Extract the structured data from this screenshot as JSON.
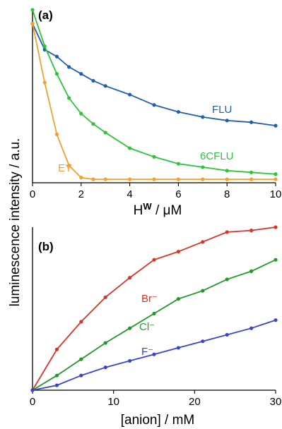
{
  "ylabel": "luminescence intensity / a.u.",
  "colors": {
    "FLU": "#1f5fae",
    "6CFLU": "#2dc43c",
    "EY": "#f2a030",
    "Br": "#d8342a",
    "Cl": "#1f9a2a",
    "F": "#3a44c9"
  },
  "chart_data": [
    {
      "type": "scatter",
      "panel_label": "(a)",
      "xlabel_base": "H",
      "xlabel_sup": "W",
      "xlabel_unit": " / μM",
      "xlim": [
        0,
        10
      ],
      "ylim": [
        0,
        1
      ],
      "xticks": [
        "0",
        "2",
        "4",
        "6",
        "8",
        "10"
      ],
      "series": [
        {
          "name": "FLU",
          "x": [
            0,
            0.5,
            1,
            1.5,
            2,
            2.5,
            3,
            4,
            5,
            6,
            7,
            8,
            9,
            10
          ],
          "y": [
            0.92,
            0.77,
            0.73,
            0.67,
            0.63,
            0.59,
            0.56,
            0.51,
            0.45,
            0.41,
            0.38,
            0.36,
            0.35,
            0.33
          ]
        },
        {
          "name": "6CFLU",
          "x": [
            0,
            0.5,
            1,
            1.5,
            2,
            2.5,
            3,
            4,
            5,
            6,
            7,
            8,
            9,
            10
          ],
          "y": [
            1.0,
            0.79,
            0.63,
            0.49,
            0.4,
            0.34,
            0.29,
            0.2,
            0.15,
            0.11,
            0.09,
            0.07,
            0.06,
            0.05
          ]
        },
        {
          "name": "EY",
          "x": [
            0,
            0.5,
            1,
            1.5,
            2,
            2.5,
            3,
            4,
            5,
            6,
            7,
            8,
            9,
            10
          ],
          "y": [
            0.92,
            0.58,
            0.28,
            0.1,
            0.03,
            0.02,
            0.02,
            0.02,
            0.02,
            0.02,
            0.02,
            0.02,
            0.02,
            0.02
          ]
        }
      ]
    },
    {
      "type": "scatter",
      "panel_label": "(b)",
      "xlabel": "[anion] / mM",
      "xlim": [
        0,
        30
      ],
      "ylim": [
        0,
        1
      ],
      "xticks": [
        "0",
        "10",
        "20",
        "30"
      ],
      "series": [
        {
          "name": "Br⁻",
          "x": [
            0,
            3,
            6,
            9,
            12,
            15,
            18,
            21,
            24,
            27,
            30
          ],
          "y": [
            0.0,
            0.25,
            0.42,
            0.57,
            0.69,
            0.8,
            0.85,
            0.91,
            0.97,
            0.98,
            1.0
          ]
        },
        {
          "name": "Cl⁻",
          "x": [
            0,
            3,
            6,
            9,
            12,
            15,
            18,
            21,
            24,
            27,
            30
          ],
          "y": [
            0.0,
            0.09,
            0.19,
            0.29,
            0.38,
            0.47,
            0.56,
            0.61,
            0.68,
            0.73,
            0.8
          ]
        },
        {
          "name": "F⁻",
          "x": [
            0,
            3,
            6,
            9,
            12,
            15,
            18,
            21,
            24,
            27,
            30
          ],
          "y": [
            0.0,
            0.03,
            0.09,
            0.14,
            0.18,
            0.22,
            0.26,
            0.3,
            0.34,
            0.38,
            0.43
          ]
        }
      ]
    }
  ]
}
